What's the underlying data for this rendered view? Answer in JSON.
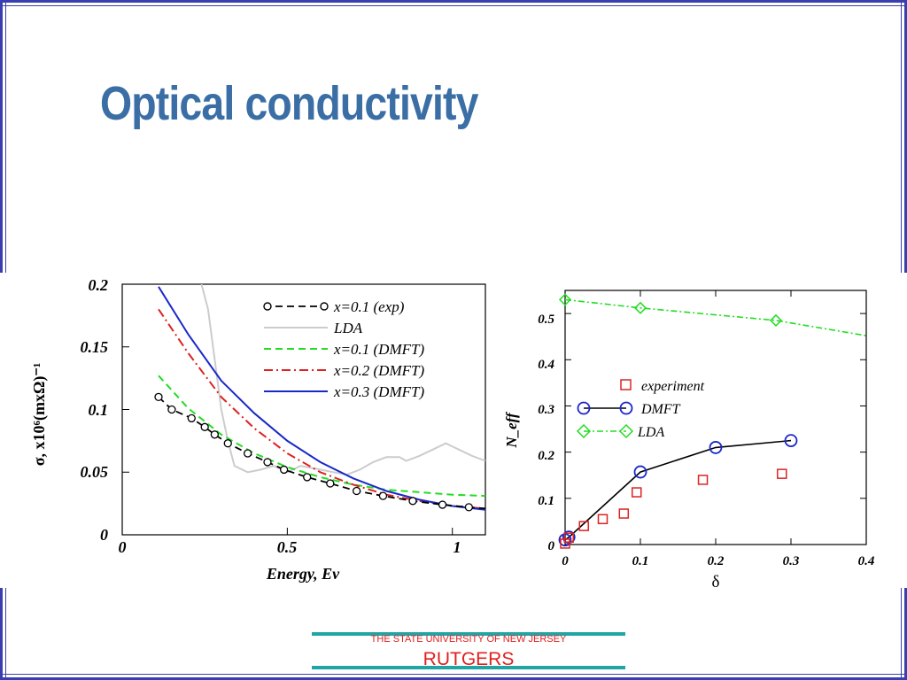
{
  "slide": {
    "title": "Optical conductivity",
    "footer_university": "THE STATE UNIVERSITY OF NEW JERSEY",
    "footer_name": "RUTGERS"
  },
  "colors": {
    "frame": "#3a3fb0",
    "title": "#3a6ea5",
    "footer_line": "#1fa5a5",
    "footer_text": "#e02020"
  },
  "chart_data": [
    {
      "type": "line",
      "xlabel": "Energy, Ev",
      "ylabel": "σ, x10⁶(mxΩ)⁻¹",
      "xlim": [
        0,
        1.1
      ],
      "ylim": [
        0,
        0.2
      ],
      "xticks": [
        "0",
        "0.5",
        "1"
      ],
      "yticks": [
        "0",
        "0.05",
        "0.1",
        "0.15",
        "0.2"
      ],
      "legend_position": "top-right",
      "legend": [
        "x=0.1 (exp)",
        "LDA",
        "x=0.1 (DMFT)",
        "x=0.2 (DMFT)",
        "x=0.3 (DMFT)"
      ],
      "series": [
        {
          "name": "x=0.1 (exp)",
          "color": "#000000",
          "style": "dashed-circle",
          "x": [
            0.11,
            0.15,
            0.21,
            0.25,
            0.28,
            0.32,
            0.38,
            0.44,
            0.49,
            0.56,
            0.63,
            0.71,
            0.79,
            0.88,
            0.97,
            1.05,
            1.1
          ],
          "y": [
            0.11,
            0.1,
            0.093,
            0.086,
            0.08,
            0.073,
            0.065,
            0.058,
            0.052,
            0.046,
            0.041,
            0.035,
            0.031,
            0.027,
            0.024,
            0.022,
            0.021
          ]
        },
        {
          "name": "LDA",
          "color": "#cccccc",
          "style": "solid",
          "x": [
            0.24,
            0.26,
            0.28,
            0.3,
            0.32,
            0.34,
            0.38,
            0.42,
            0.46,
            0.5,
            0.54,
            0.6,
            0.64,
            0.68,
            0.72,
            0.76,
            0.8,
            0.84,
            0.86,
            0.9,
            0.94,
            0.98,
            1.02,
            1.06,
            1.1
          ],
          "y": [
            0.2,
            0.18,
            0.14,
            0.1,
            0.075,
            0.055,
            0.05,
            0.052,
            0.055,
            0.05,
            0.055,
            0.052,
            0.05,
            0.048,
            0.052,
            0.058,
            0.062,
            0.062,
            0.059,
            0.063,
            0.068,
            0.073,
            0.068,
            0.063,
            0.059
          ]
        },
        {
          "name": "x=0.1 (DMFT)",
          "color": "#22dd22",
          "style": "dashed",
          "x": [
            0.11,
            0.2,
            0.3,
            0.4,
            0.5,
            0.6,
            0.7,
            0.8,
            0.9,
            1.0,
            1.1
          ],
          "y": [
            0.127,
            0.101,
            0.08,
            0.065,
            0.054,
            0.046,
            0.04,
            0.036,
            0.034,
            0.032,
            0.031
          ]
        },
        {
          "name": "x=0.2 (DMFT)",
          "color": "#dd2222",
          "style": "dashdot",
          "x": [
            0.11,
            0.2,
            0.3,
            0.4,
            0.5,
            0.6,
            0.7,
            0.8,
            0.9,
            1.0,
            1.1
          ],
          "y": [
            0.18,
            0.145,
            0.11,
            0.085,
            0.065,
            0.05,
            0.04,
            0.032,
            0.027,
            0.023,
            0.021
          ]
        },
        {
          "name": "x=0.3 (DMFT)",
          "color": "#1a28c8",
          "style": "solid",
          "x": [
            0.11,
            0.2,
            0.3,
            0.4,
            0.5,
            0.6,
            0.7,
            0.8,
            0.9,
            1.0,
            1.1
          ],
          "y": [
            0.198,
            0.16,
            0.123,
            0.097,
            0.075,
            0.058,
            0.045,
            0.035,
            0.028,
            0.023,
            0.02
          ]
        }
      ]
    },
    {
      "type": "scatter",
      "xlabel": "δ",
      "ylabel": "N_eff",
      "xlim": [
        0,
        0.4
      ],
      "ylim": [
        0,
        0.55
      ],
      "xticks": [
        "0",
        "0.1",
        "0.2",
        "0.3",
        "0.4"
      ],
      "yticks": [
        "0",
        "0.1",
        "0.2",
        "0.3",
        "0.4",
        "0.5"
      ],
      "legend_position": "center",
      "legend": [
        "experiment",
        "DMFT",
        "LDA"
      ],
      "series": [
        {
          "name": "experiment",
          "color": "#dd2222",
          "marker": "square",
          "x": [
            0.0,
            0.005,
            0.025,
            0.05,
            0.078,
            0.095,
            0.183,
            0.288
          ],
          "y": [
            0.002,
            0.015,
            0.04,
            0.055,
            0.067,
            0.113,
            0.14,
            0.153
          ]
        },
        {
          "name": "DMFT",
          "color": "#1a28c8",
          "line_color": "#000000",
          "marker": "circle",
          "x": [
            0.0,
            0.005,
            0.1,
            0.2,
            0.3
          ],
          "y": [
            0.01,
            0.016,
            0.157,
            0.21,
            0.225
          ]
        },
        {
          "name": "LDA",
          "color": "#22dd22",
          "marker": "diamond",
          "style": "dashdot",
          "x": [
            0.0,
            0.1,
            0.28,
            0.4
          ],
          "y": [
            0.53,
            0.512,
            0.485,
            0.452
          ]
        }
      ]
    }
  ]
}
